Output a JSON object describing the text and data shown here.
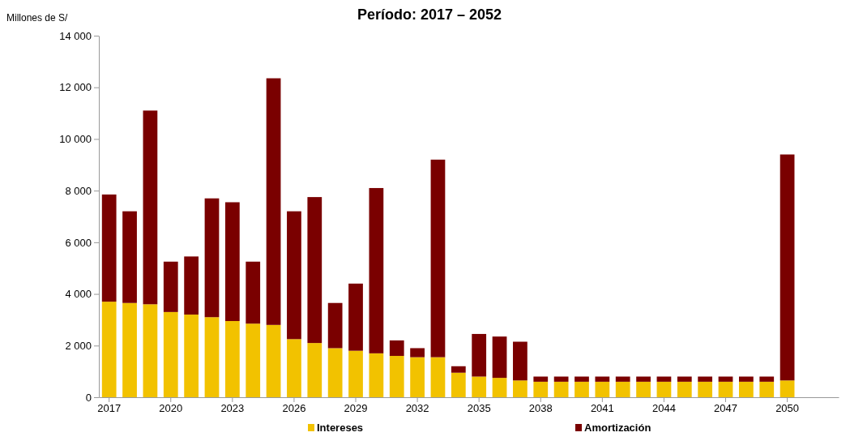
{
  "chart_data": {
    "type": "bar",
    "title": "Período: 2017 – 2052",
    "ylabel": "Millones de S/",
    "stacked": true,
    "legend": "bottom",
    "grid": false,
    "categories": [
      "2017",
      null,
      null,
      "2020",
      null,
      null,
      "2023",
      null,
      null,
      "2026",
      null,
      null,
      "2029",
      null,
      null,
      "2032",
      null,
      null,
      "2035",
      null,
      null,
      "2038",
      null,
      null,
      "2041",
      null,
      null,
      "2044",
      null,
      null,
      "2047",
      null,
      null,
      "2050",
      null,
      null
    ],
    "ylim": [
      0,
      14000
    ],
    "yticks": [
      0,
      {
        "value": 2000,
        "label": "2 000"
      },
      {
        "value": 4000,
        "label": "4 000"
      },
      {
        "value": 6000,
        "label": "6 000"
      },
      {
        "value": 8000,
        "label": "8 000"
      },
      {
        "value": 10000,
        "label": "10 000"
      },
      {
        "value": 12000,
        "label": "12 000"
      },
      {
        "value": 14000,
        "label": "14 000"
      }
    ],
    "series": [
      {
        "name": "Intereses",
        "color": "#f2c200",
        "values": [
          3700,
          3650,
          3600,
          3300,
          3200,
          3100,
          2950,
          2850,
          2800,
          2250,
          2100,
          1900,
          1800,
          1700,
          1600,
          1550,
          1550,
          950,
          800,
          750,
          650,
          600,
          600,
          600,
          600,
          600,
          600,
          600,
          600,
          600,
          600,
          600,
          600,
          650,
          0,
          0
        ]
      },
      {
        "name": "Amortización",
        "color": "#7a0000",
        "values": [
          4150,
          3550,
          7500,
          1950,
          2250,
          4600,
          4600,
          2400,
          9550,
          4950,
          5650,
          1750,
          2600,
          6400,
          600,
          350,
          7650,
          250,
          1650,
          1600,
          1500,
          200,
          200,
          200,
          200,
          200,
          200,
          200,
          200,
          200,
          200,
          200,
          200,
          8750,
          0,
          0
        ]
      }
    ]
  }
}
